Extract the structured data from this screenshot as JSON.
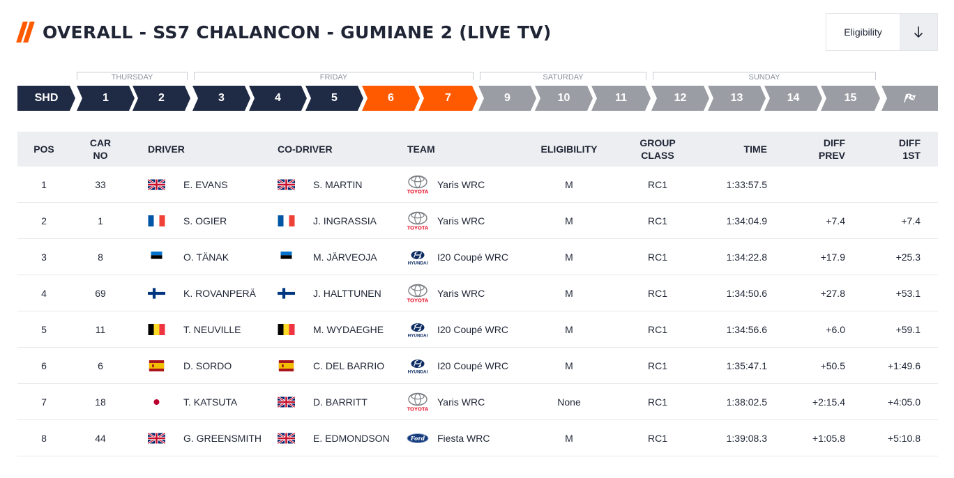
{
  "header": {
    "title": "OVERALL - SS7 CHALANCON - GUMIANE 2 (LIVE TV)",
    "filter_label": "Eligibility",
    "filter_icon": "arrow-down-icon"
  },
  "days": [
    "THURSDAY",
    "FRIDAY",
    "SATURDAY",
    "SUNDAY"
  ],
  "stages": [
    "SHD",
    "1",
    "2",
    "3",
    "4",
    "5",
    "6",
    "7",
    "9",
    "10",
    "11",
    "12",
    "13",
    "14",
    "15"
  ],
  "finish_icon": "chequered-flag-icon",
  "colors": {
    "accent": "#ff5a00",
    "navy": "#1f2a44",
    "grey": "#9a9da3",
    "header_bg": "#eceef1"
  },
  "columns": {
    "pos": "POS",
    "car_no": [
      "CAR",
      "NO"
    ],
    "driver": "DRIVER",
    "codriver": "CO-DRIVER",
    "team": "TEAM",
    "eligibility": "ELIGIBILITY",
    "group_class": [
      "GROUP",
      "CLASS"
    ],
    "time": "TIME",
    "diff_prev": [
      "DIFF",
      "PREV"
    ],
    "diff_first": [
      "DIFF",
      "1ST"
    ]
  },
  "rows": [
    {
      "pos": "1",
      "car": "33",
      "driver": "E. EVANS",
      "driver_flag": "gb",
      "codriver": "S. MARTIN",
      "codriver_flag": "gb",
      "team_logo": "toyota",
      "team": "Yaris WRC",
      "elig": "M",
      "cls": "RC1",
      "time": "1:33:57.5",
      "diff_prev": "",
      "diff_first": ""
    },
    {
      "pos": "2",
      "car": "1",
      "driver": "S. OGIER",
      "driver_flag": "fr",
      "codriver": "J. INGRASSIA",
      "codriver_flag": "fr",
      "team_logo": "toyota",
      "team": "Yaris WRC",
      "elig": "M",
      "cls": "RC1",
      "time": "1:34:04.9",
      "diff_prev": "+7.4",
      "diff_first": "+7.4"
    },
    {
      "pos": "3",
      "car": "8",
      "driver": "O. TÄNAK",
      "driver_flag": "ee",
      "codriver": "M. JÄRVEOJA",
      "codriver_flag": "ee",
      "team_logo": "hyundai",
      "team": "I20 Coupé WRC",
      "elig": "M",
      "cls": "RC1",
      "time": "1:34:22.8",
      "diff_prev": "+17.9",
      "diff_first": "+25.3"
    },
    {
      "pos": "4",
      "car": "69",
      "driver": "K. ROVANPERÄ",
      "driver_flag": "fi",
      "codriver": "J. HALTTUNEN",
      "codriver_flag": "fi",
      "team_logo": "toyota",
      "team": "Yaris WRC",
      "elig": "M",
      "cls": "RC1",
      "time": "1:34:50.6",
      "diff_prev": "+27.8",
      "diff_first": "+53.1"
    },
    {
      "pos": "5",
      "car": "11",
      "driver": "T. NEUVILLE",
      "driver_flag": "be",
      "codriver": "M. WYDAEGHE",
      "codriver_flag": "be",
      "team_logo": "hyundai",
      "team": "I20 Coupé WRC",
      "elig": "M",
      "cls": "RC1",
      "time": "1:34:56.6",
      "diff_prev": "+6.0",
      "diff_first": "+59.1"
    },
    {
      "pos": "6",
      "car": "6",
      "driver": "D. SORDO",
      "driver_flag": "es",
      "codriver": "C. DEL BARRIO",
      "codriver_flag": "es",
      "team_logo": "hyundai",
      "team": "I20 Coupé WRC",
      "elig": "M",
      "cls": "RC1",
      "time": "1:35:47.1",
      "diff_prev": "+50.5",
      "diff_first": "+1:49.6"
    },
    {
      "pos": "7",
      "car": "18",
      "driver": "T. KATSUTA",
      "driver_flag": "jp",
      "codriver": "D. BARRITT",
      "codriver_flag": "gb",
      "team_logo": "toyota",
      "team": "Yaris WRC",
      "elig": "None",
      "cls": "RC1",
      "time": "1:38:02.5",
      "diff_prev": "+2:15.4",
      "diff_first": "+4:05.0"
    },
    {
      "pos": "8",
      "car": "44",
      "driver": "G. GREENSMITH",
      "driver_flag": "gb",
      "codriver": "E. EDMONDSON",
      "codriver_flag": "gb",
      "team_logo": "ford",
      "team": "Fiesta WRC",
      "elig": "M",
      "cls": "RC1",
      "time": "1:39:08.3",
      "diff_prev": "+1:05.8",
      "diff_first": "+5:10.8"
    }
  ]
}
